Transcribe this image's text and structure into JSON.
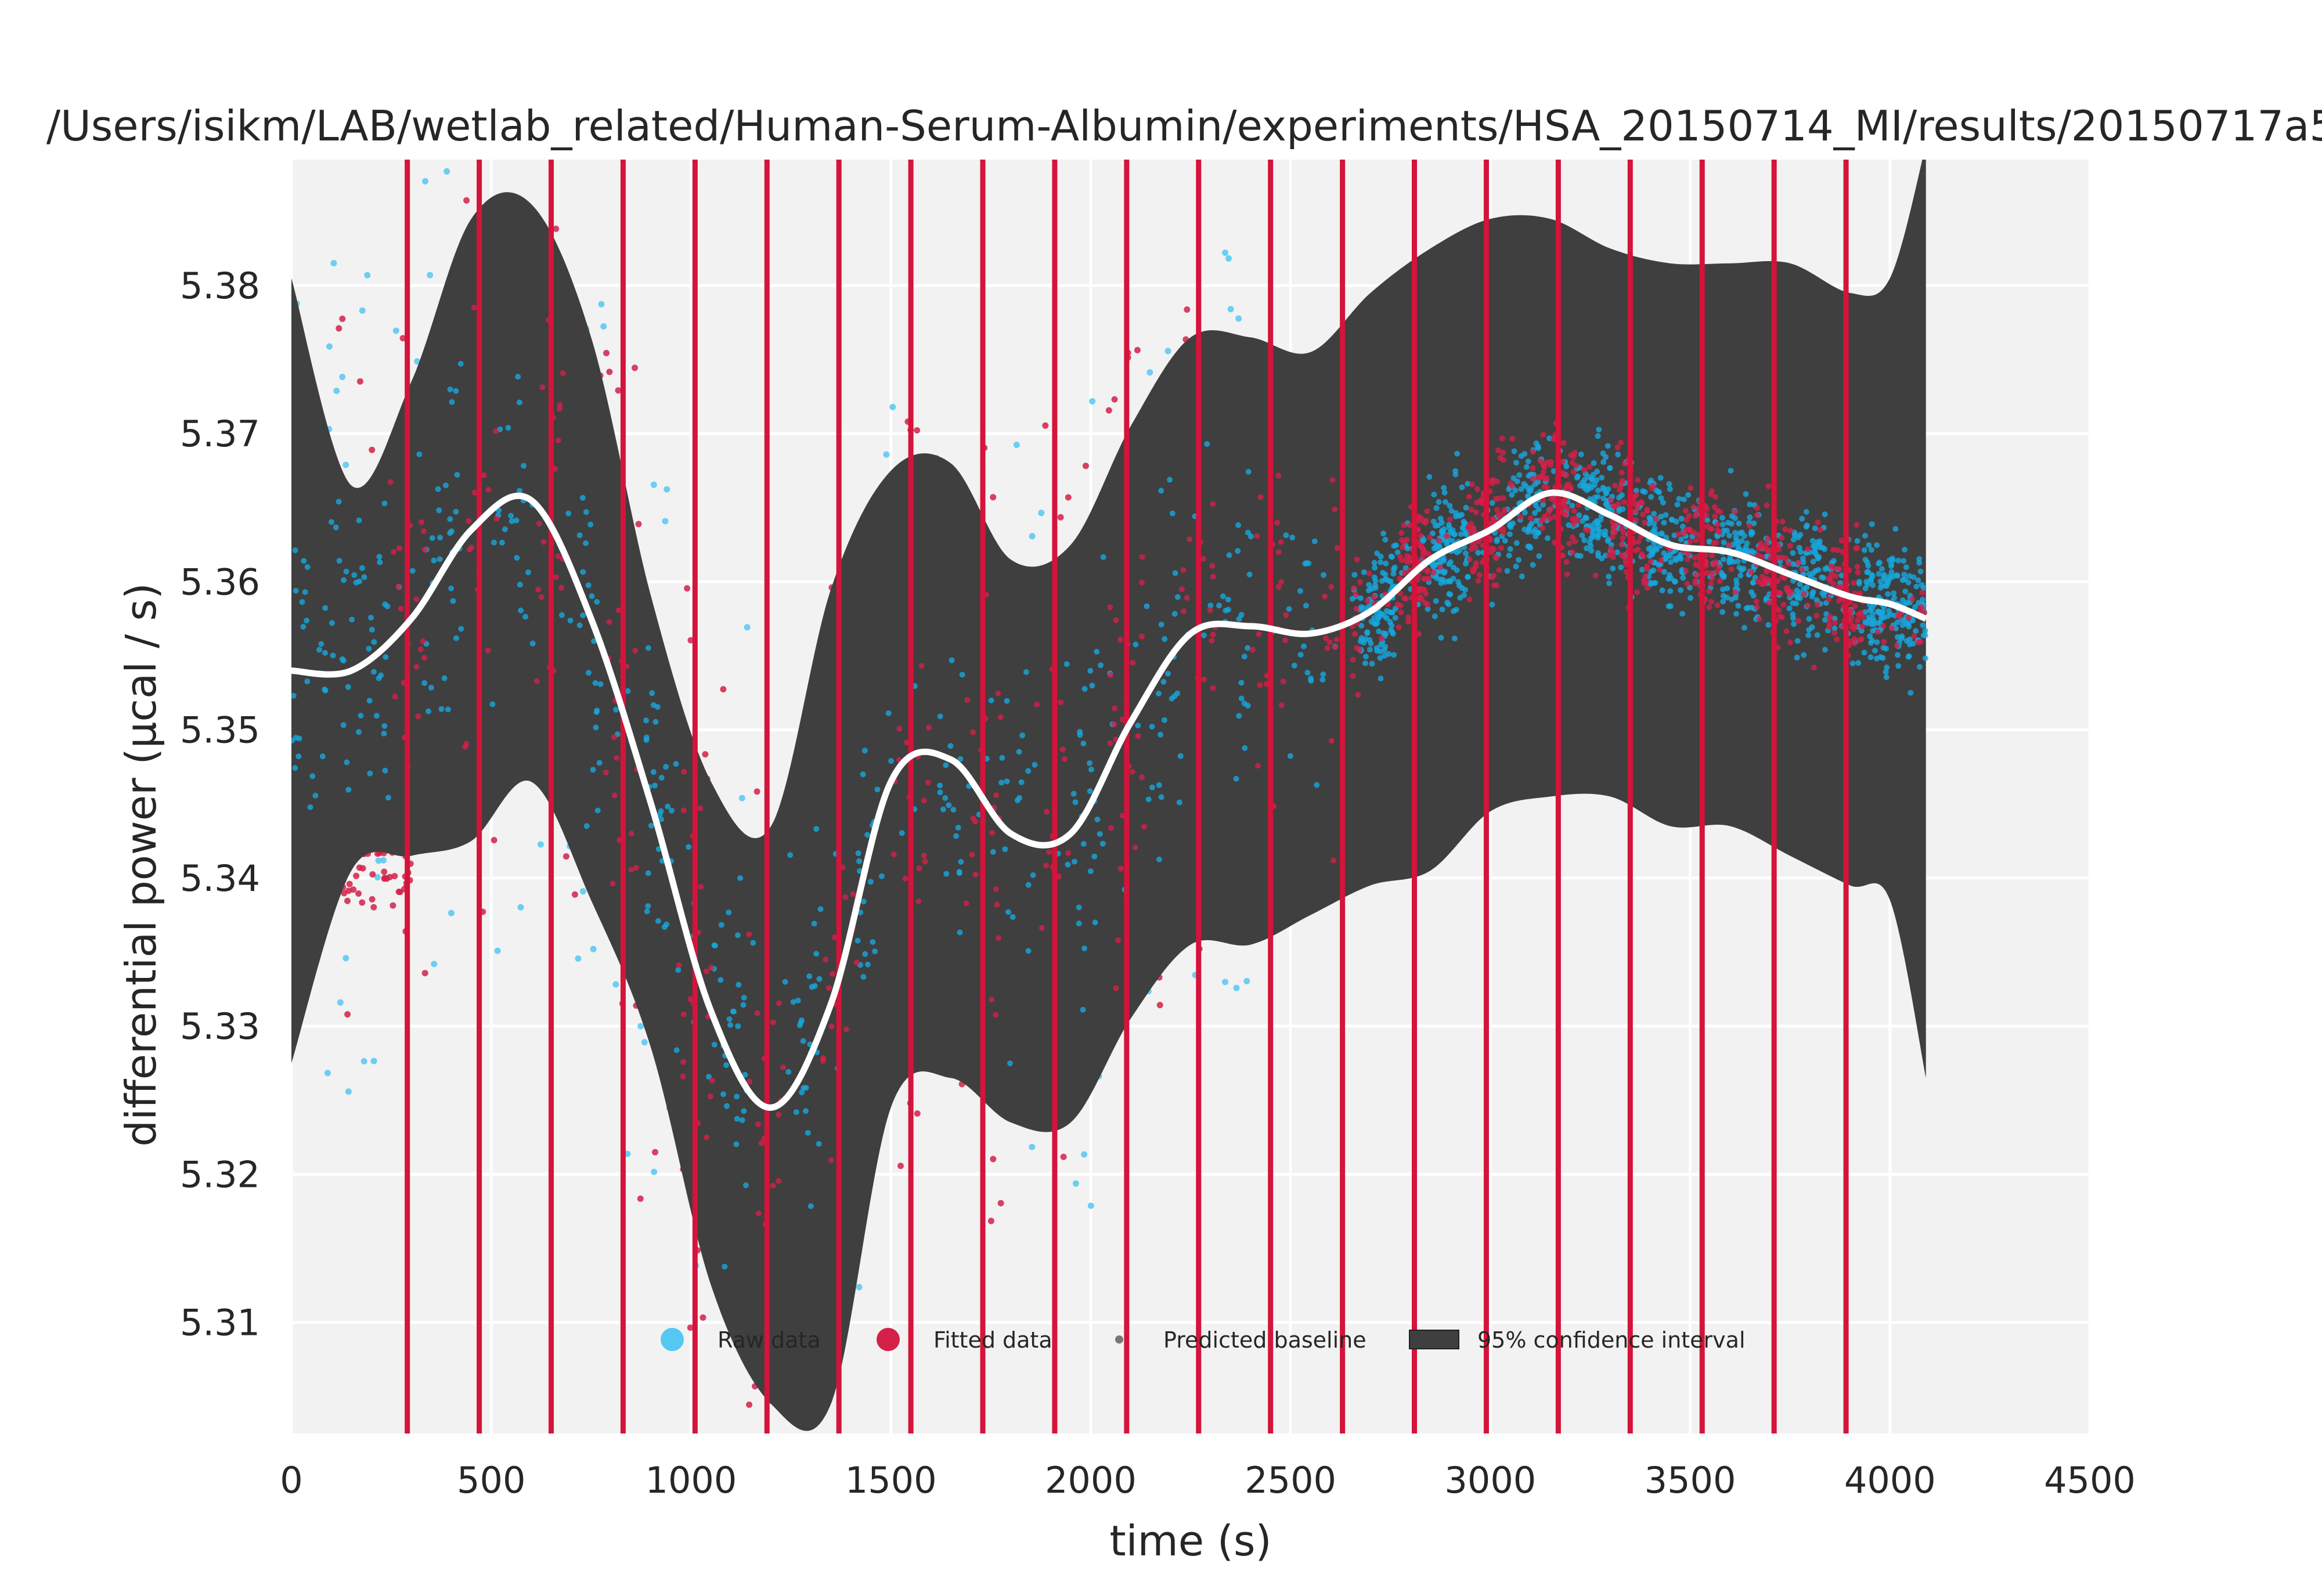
{
  "chart_data": {
    "type": "scatter",
    "title": "/Users/isikm/LAB/wetlab_related/Human-Serum-Albumin/experiments/HSA_20150714_MI/results/20150717a5",
    "xlabel": "time (s)",
    "ylabel": "differential power (μcal / s)",
    "xlim": [
      0,
      4500
    ],
    "ylim": [
      5.3025,
      5.3885
    ],
    "xticks": [
      "0",
      "500",
      "1000",
      "1500",
      "2000",
      "2500",
      "3000",
      "3500",
      "4000",
      "4500"
    ],
    "yticks": [
      "5.31",
      "5.32",
      "5.33",
      "5.34",
      "5.35",
      "5.36",
      "5.37",
      "5.38"
    ],
    "grid": true,
    "legend_position": "lower-center",
    "injection_times": [
      290,
      470,
      650,
      830,
      1010,
      1190,
      1370,
      1550,
      1730,
      1910,
      2090,
      2270,
      2450,
      2630,
      2810,
      2990,
      3170,
      3350,
      3530,
      3710,
      3890
    ],
    "baseline": {
      "x": [
        0,
        150,
        300,
        450,
        600,
        750,
        900,
        1050,
        1200,
        1350,
        1500,
        1650,
        1800,
        1950,
        2100,
        2250,
        2400,
        2550,
        2700,
        2850,
        3000,
        3150,
        3300,
        3450,
        3600,
        3750,
        3900,
        4000,
        4090
      ],
      "y": [
        5.354,
        5.354,
        5.3575,
        5.3635,
        5.3655,
        5.3575,
        5.345,
        5.331,
        5.3245,
        5.3315,
        5.3465,
        5.348,
        5.343,
        5.343,
        5.3505,
        5.3565,
        5.357,
        5.3565,
        5.358,
        5.3615,
        5.3635,
        5.366,
        5.3645,
        5.3625,
        5.362,
        5.3605,
        5.359,
        5.3585,
        5.3575
      ]
    },
    "ci_upper": [
      5.3805,
      5.3665,
      5.3735,
      5.3845,
      5.3855,
      5.3765,
      5.359,
      5.3465,
      5.3435,
      5.3595,
      5.3675,
      5.368,
      5.3615,
      5.3625,
      5.3705,
      5.3765,
      5.3765,
      5.3755,
      5.3795,
      5.3825,
      5.3845,
      5.3845,
      5.3825,
      5.3815,
      5.3815,
      5.3815,
      5.3795,
      5.3805,
      5.3895
    ],
    "ci_lower": [
      5.3275,
      5.3405,
      5.3415,
      5.3425,
      5.3465,
      5.3385,
      5.3285,
      5.3125,
      5.3045,
      5.3045,
      5.3245,
      5.3265,
      5.3235,
      5.3235,
      5.3305,
      5.3355,
      5.3355,
      5.3375,
      5.3395,
      5.3405,
      5.3445,
      5.3455,
      5.3455,
      5.3435,
      5.3435,
      5.3415,
      5.3395,
      5.3385,
      5.3265
    ],
    "series": [
      {
        "name": "Raw data",
        "color": "#55c8f2",
        "marker": "dot",
        "distribution": "scatter"
      },
      {
        "name": "Fitted data",
        "color": "#d4214a",
        "marker": "dot",
        "distribution": "scatter"
      },
      {
        "name": "Predicted baseline",
        "color": "#ffffff",
        "marker": "line",
        "values": "baseline"
      },
      {
        "name": "95% confidence interval",
        "color": "#3f3f3f",
        "marker": "band",
        "values": "ci_upper/ci_lower"
      }
    ],
    "colors": {
      "plot_background": "#f2f2f2",
      "grid": "#ffffff",
      "raw": "#55c8f2",
      "raw_dense": "#17a7de",
      "fitted": "#d4214a",
      "injection": "#d4143a",
      "band": "#3f3f3f",
      "baseline": "#ffffff"
    }
  }
}
